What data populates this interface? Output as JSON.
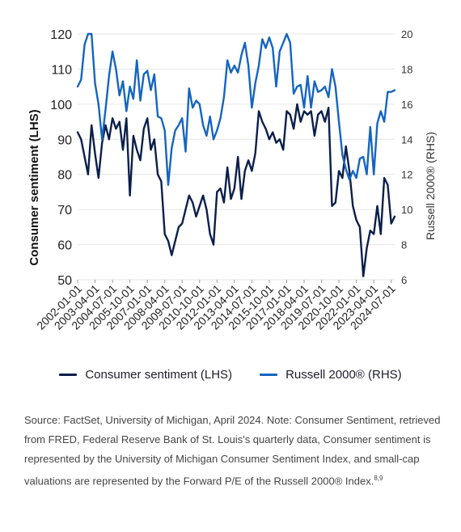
{
  "chart_data": {
    "type": "line",
    "ylabel": "Consumer sentiment (LHS)",
    "y2label": "Russell 2000® (RHS)",
    "ylim": [
      50,
      120
    ],
    "y2lim": [
      6,
      20
    ],
    "yticks": [
      50,
      60,
      70,
      80,
      90,
      100,
      110,
      120
    ],
    "y2ticks": [
      6,
      8,
      10,
      12,
      14,
      16,
      18,
      20
    ],
    "grid": "horizontal",
    "legend_position": "bottom",
    "x_start": "2002-01",
    "x_end": "2024-10",
    "categories": [
      "2002-01-01",
      "2003-04-01",
      "2004-07-01",
      "2005-10-01",
      "2007-01-01",
      "2008-04-01",
      "2009-07-01",
      "2010-10-01",
      "2012-01-01",
      "2013-04-01",
      "2014-07-01",
      "2015-10-01",
      "2017-01-01",
      "2018-04-01",
      "2019-07-01",
      "2020-10-01",
      "2022-01-01",
      "2023-04-01",
      "2024-07-01"
    ],
    "series": [
      {
        "name": "Consumer sentiment (LHS)",
        "axis": "left",
        "color": "#0b1f4b",
        "values": [
          [
            "2002-01",
            92
          ],
          [
            "2002-04",
            90
          ],
          [
            "2002-07",
            85
          ],
          [
            "2002-10",
            80
          ],
          [
            "2003-01",
            94
          ],
          [
            "2003-04",
            86
          ],
          [
            "2003-07",
            79
          ],
          [
            "2003-10",
            89
          ],
          [
            "2004-01",
            94
          ],
          [
            "2004-04",
            90
          ],
          [
            "2004-07",
            96
          ],
          [
            "2004-10",
            93
          ],
          [
            "2005-01",
            95
          ],
          [
            "2005-04",
            87
          ],
          [
            "2005-07",
            96
          ],
          [
            "2005-10",
            74
          ],
          [
            "2006-01",
            91
          ],
          [
            "2006-04",
            87
          ],
          [
            "2006-07",
            84
          ],
          [
            "2006-10",
            93
          ],
          [
            "2007-01",
            96
          ],
          [
            "2007-04",
            87
          ],
          [
            "2007-07",
            90
          ],
          [
            "2007-10",
            80
          ],
          [
            "2008-01",
            78
          ],
          [
            "2008-04",
            63
          ],
          [
            "2008-07",
            61
          ],
          [
            "2008-10",
            57
          ],
          [
            "2009-01",
            61
          ],
          [
            "2009-04",
            65
          ],
          [
            "2009-07",
            66
          ],
          [
            "2009-10",
            70
          ],
          [
            "2010-01",
            74
          ],
          [
            "2010-04",
            72
          ],
          [
            "2010-07",
            68
          ],
          [
            "2010-10",
            71
          ],
          [
            "2011-01",
            74
          ],
          [
            "2011-04",
            70
          ],
          [
            "2011-07",
            63
          ],
          [
            "2011-10",
            60
          ],
          [
            "2012-01",
            75
          ],
          [
            "2012-04",
            76
          ],
          [
            "2012-07",
            72
          ],
          [
            "2012-10",
            82
          ],
          [
            "2013-01",
            73
          ],
          [
            "2013-04",
            76
          ],
          [
            "2013-07",
            85
          ],
          [
            "2013-10",
            73
          ],
          [
            "2014-01",
            81
          ],
          [
            "2014-04",
            84
          ],
          [
            "2014-07",
            81
          ],
          [
            "2014-10",
            86
          ],
          [
            "2015-01",
            98
          ],
          [
            "2015-04",
            95
          ],
          [
            "2015-07",
            93
          ],
          [
            "2015-10",
            90
          ],
          [
            "2016-01",
            92
          ],
          [
            "2016-04",
            89
          ],
          [
            "2016-07",
            90
          ],
          [
            "2016-10",
            87
          ],
          [
            "2017-01",
            98
          ],
          [
            "2017-04",
            97
          ],
          [
            "2017-07",
            93
          ],
          [
            "2017-10",
            100
          ],
          [
            "2018-01",
            95
          ],
          [
            "2018-04",
            98
          ],
          [
            "2018-07",
            97
          ],
          [
            "2018-10",
            98
          ],
          [
            "2019-01",
            91
          ],
          [
            "2019-04",
            97
          ],
          [
            "2019-07",
            98
          ],
          [
            "2019-10",
            95
          ],
          [
            "2020-01",
            99
          ],
          [
            "2020-04",
            71
          ],
          [
            "2020-07",
            72
          ],
          [
            "2020-10",
            81
          ],
          [
            "2021-01",
            79
          ],
          [
            "2021-04",
            88
          ],
          [
            "2021-07",
            81
          ],
          [
            "2021-10",
            71
          ],
          [
            "2022-01",
            67
          ],
          [
            "2022-04",
            65
          ],
          [
            "2022-07",
            51
          ],
          [
            "2022-10",
            59
          ],
          [
            "2023-01",
            64
          ],
          [
            "2023-04",
            63
          ],
          [
            "2023-07",
            71
          ],
          [
            "2023-10",
            63
          ],
          [
            "2024-01",
            79
          ],
          [
            "2024-04",
            77
          ],
          [
            "2024-07",
            66
          ],
          [
            "2024-10",
            68
          ]
        ]
      },
      {
        "name": "Russell 2000® (RHS)",
        "axis": "right",
        "color": "#1565c0",
        "values": [
          [
            "2002-01",
            17.0
          ],
          [
            "2002-04",
            17.4
          ],
          [
            "2002-07",
            19.4
          ],
          [
            "2002-10",
            20.0
          ],
          [
            "2003-01",
            20.0
          ],
          [
            "2003-04",
            17.2
          ],
          [
            "2003-07",
            16.0
          ],
          [
            "2003-10",
            14.0
          ],
          [
            "2004-01",
            15.7
          ],
          [
            "2004-04",
            17.6
          ],
          [
            "2004-07",
            19.0
          ],
          [
            "2004-10",
            18.0
          ],
          [
            "2005-01",
            16.5
          ],
          [
            "2005-04",
            17.3
          ],
          [
            "2005-07",
            15.6
          ],
          [
            "2005-10",
            17.0
          ],
          [
            "2006-01",
            16.3
          ],
          [
            "2006-04",
            18.5
          ],
          [
            "2006-07",
            16.2
          ],
          [
            "2006-10",
            17.7
          ],
          [
            "2007-01",
            17.9
          ],
          [
            "2007-04",
            16.8
          ],
          [
            "2007-07",
            17.7
          ],
          [
            "2007-10",
            15.3
          ],
          [
            "2008-01",
            15.2
          ],
          [
            "2008-04",
            14.5
          ],
          [
            "2008-07",
            11.4
          ],
          [
            "2008-10",
            13.5
          ],
          [
            "2009-01",
            14.5
          ],
          [
            "2009-04",
            14.8
          ],
          [
            "2009-07",
            15.2
          ],
          [
            "2009-10",
            13.3
          ],
          [
            "2010-01",
            16.9
          ],
          [
            "2010-04",
            15.8
          ],
          [
            "2010-07",
            16.2
          ],
          [
            "2010-10",
            16.0
          ],
          [
            "2011-01",
            14.8
          ],
          [
            "2011-04",
            14.2
          ],
          [
            "2011-07",
            15.3
          ],
          [
            "2011-10",
            14.0
          ],
          [
            "2012-01",
            14.5
          ],
          [
            "2012-04",
            15.2
          ],
          [
            "2012-07",
            16.4
          ],
          [
            "2012-10",
            18.5
          ],
          [
            "2013-01",
            17.8
          ],
          [
            "2013-04",
            18.2
          ],
          [
            "2013-07",
            17.8
          ],
          [
            "2013-10",
            18.8
          ],
          [
            "2014-01",
            19.5
          ],
          [
            "2014-04",
            18.2
          ],
          [
            "2014-07",
            15.8
          ],
          [
            "2014-10",
            17.2
          ],
          [
            "2015-01",
            18.2
          ],
          [
            "2015-04",
            19.7
          ],
          [
            "2015-07",
            19.2
          ],
          [
            "2015-10",
            19.8
          ],
          [
            "2016-01",
            19.2
          ],
          [
            "2016-04",
            17.0
          ],
          [
            "2016-07",
            19.0
          ],
          [
            "2016-10",
            19.5
          ],
          [
            "2017-01",
            20.0
          ],
          [
            "2017-04",
            19.5
          ],
          [
            "2017-07",
            16.6
          ],
          [
            "2017-10",
            17.0
          ],
          [
            "2018-01",
            17.1
          ],
          [
            "2018-04",
            15.8
          ],
          [
            "2018-07",
            17.6
          ],
          [
            "2018-10",
            15.8
          ],
          [
            "2019-01",
            17.3
          ],
          [
            "2019-04",
            16.7
          ],
          [
            "2019-07",
            16.8
          ],
          [
            "2019-10",
            17.0
          ],
          [
            "2020-01",
            16.4
          ],
          [
            "2020-04",
            18.0
          ],
          [
            "2020-07",
            17.0
          ],
          [
            "2020-10",
            15.0
          ],
          [
            "2021-01",
            13.1
          ],
          [
            "2021-04",
            12.3
          ],
          [
            "2021-07",
            11.7
          ],
          [
            "2021-10",
            12.2
          ],
          [
            "2022-01",
            11.8
          ],
          [
            "2022-04",
            12.9
          ],
          [
            "2022-07",
            13.0
          ],
          [
            "2022-10",
            12.0
          ],
          [
            "2023-01",
            14.7
          ],
          [
            "2023-04",
            12.0
          ],
          [
            "2023-07",
            14.9
          ],
          [
            "2023-10",
            15.6
          ],
          [
            "2024-01",
            15.0
          ],
          [
            "2024-04",
            16.7
          ],
          [
            "2024-07",
            16.7
          ],
          [
            "2024-10",
            16.8
          ]
        ]
      }
    ]
  },
  "legend": {
    "series1": "Consumer sentiment (LHS)",
    "series2": "Russell 2000® (RHS)"
  },
  "source": {
    "text": "Source: FactSet, University of Michigan, April 2024. Note: Consumer Sentiment, retrieved from FRED, Federal Reserve Bank of St. Louis's quarterly data, Consumer sentiment is represented by the University of Michigan Consumer Sentiment Index, and small-cap valuations are represented by the Forward P/E of the Russell 2000® Index.",
    "footnote": "8,9"
  }
}
